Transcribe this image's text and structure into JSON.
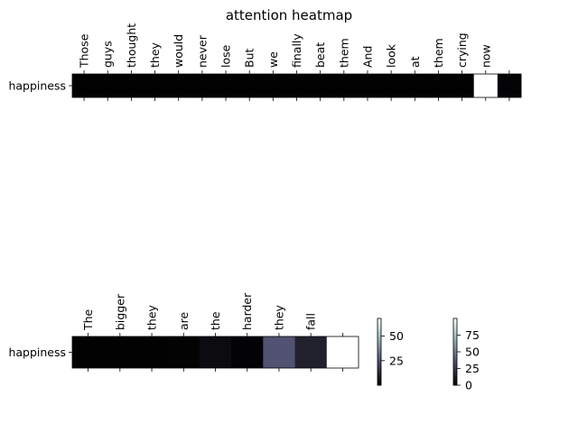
{
  "chart_data": [
    {
      "type": "heatmap",
      "title": "attention heatmap",
      "rows": [
        "happiness"
      ],
      "columns": [
        "Those",
        "guys",
        "thought",
        "they",
        "would",
        "never",
        "lose",
        "But",
        "we",
        "finally",
        "beat",
        "them",
        "And",
        "look",
        "at",
        "them",
        "crying",
        "now",
        ""
      ],
      "values": [
        [
          0.5,
          0.5,
          0.5,
          0.5,
          0.5,
          0.5,
          0.5,
          0.5,
          0.5,
          0.5,
          0.5,
          0.5,
          0.5,
          0.5,
          0.5,
          0.5,
          0.5,
          100,
          2
        ]
      ],
      "colormap": "bone",
      "vmin": 0,
      "vmax": 100,
      "colorbar_ticks": [
        0,
        25,
        50,
        75
      ]
    },
    {
      "type": "heatmap",
      "title": "",
      "rows": [
        "happiness"
      ],
      "columns": [
        "The",
        "bigger",
        "they",
        "are",
        "the",
        "harder",
        "they",
        "fall",
        ""
      ],
      "values": [
        [
          0.5,
          0.5,
          0.5,
          0.8,
          3.5,
          1,
          25,
          10,
          68
        ]
      ],
      "colormap": "bone",
      "vmin": 0,
      "vmax": 68,
      "colorbar_ticks": [
        25,
        50
      ]
    }
  ]
}
